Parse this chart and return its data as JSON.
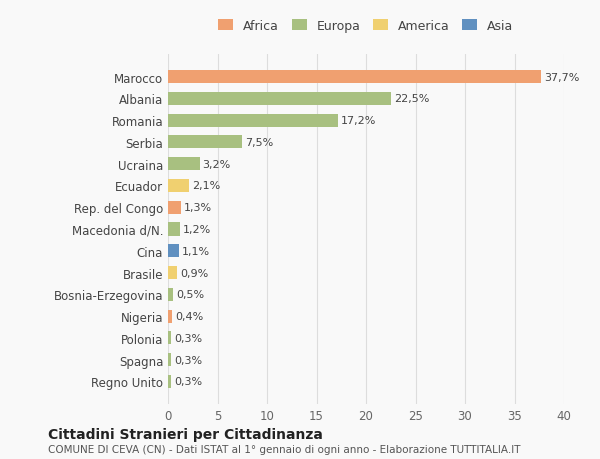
{
  "countries": [
    "Marocco",
    "Albania",
    "Romania",
    "Serbia",
    "Ucraina",
    "Ecuador",
    "Rep. del Congo",
    "Macedonia d/N.",
    "Cina",
    "Brasile",
    "Bosnia-Erzegovina",
    "Nigeria",
    "Polonia",
    "Spagna",
    "Regno Unito"
  ],
  "values": [
    37.7,
    22.5,
    17.2,
    7.5,
    3.2,
    2.1,
    1.3,
    1.2,
    1.1,
    0.9,
    0.5,
    0.4,
    0.3,
    0.3,
    0.3
  ],
  "labels": [
    "37,7%",
    "22,5%",
    "17,2%",
    "7,5%",
    "3,2%",
    "2,1%",
    "1,3%",
    "1,2%",
    "1,1%",
    "0,9%",
    "0,5%",
    "0,4%",
    "0,3%",
    "0,3%",
    "0,3%"
  ],
  "continents": [
    "Africa",
    "Europa",
    "Europa",
    "Europa",
    "Europa",
    "America",
    "Africa",
    "Europa",
    "Asia",
    "America",
    "Europa",
    "Africa",
    "Europa",
    "Europa",
    "Europa"
  ],
  "continent_colors": {
    "Africa": "#F0A070",
    "Europa": "#A8C080",
    "America": "#F0D070",
    "Asia": "#6090C0"
  },
  "legend_order": [
    "Africa",
    "Europa",
    "America",
    "Asia"
  ],
  "title": "Cittadini Stranieri per Cittadinanza",
  "subtitle": "COMUNE DI CEVA (CN) - Dati ISTAT al 1° gennaio di ogni anno - Elaborazione TUTTITALIA.IT",
  "xlim": [
    0,
    40
  ],
  "xticks": [
    0,
    5,
    10,
    15,
    20,
    25,
    30,
    35,
    40
  ],
  "background_color": "#f9f9f9",
  "bar_height": 0.6,
  "grid_color": "#dddddd"
}
